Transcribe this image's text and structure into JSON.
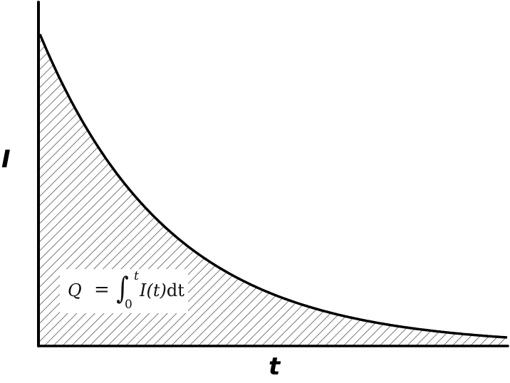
{
  "chart_data": {
    "type": "area",
    "title": "",
    "xlabel": "t",
    "ylabel": "I",
    "function": "I(t) = I0 * exp(-k t)",
    "decay_rate_k": 3.6,
    "x_range": [
      0,
      1
    ],
    "y_range": [
      0,
      1
    ],
    "ticks": false,
    "grid": false,
    "fill": "hatched",
    "annotation": {
      "lhs": "Q",
      "equals": "=",
      "integral": "∫",
      "upper_limit": "t",
      "lower_limit": "0",
      "integrand": "I(t)",
      "differential": "dt"
    },
    "colors": {
      "curve": "#000000",
      "hatch": "#555555",
      "axes": "#000000"
    }
  }
}
